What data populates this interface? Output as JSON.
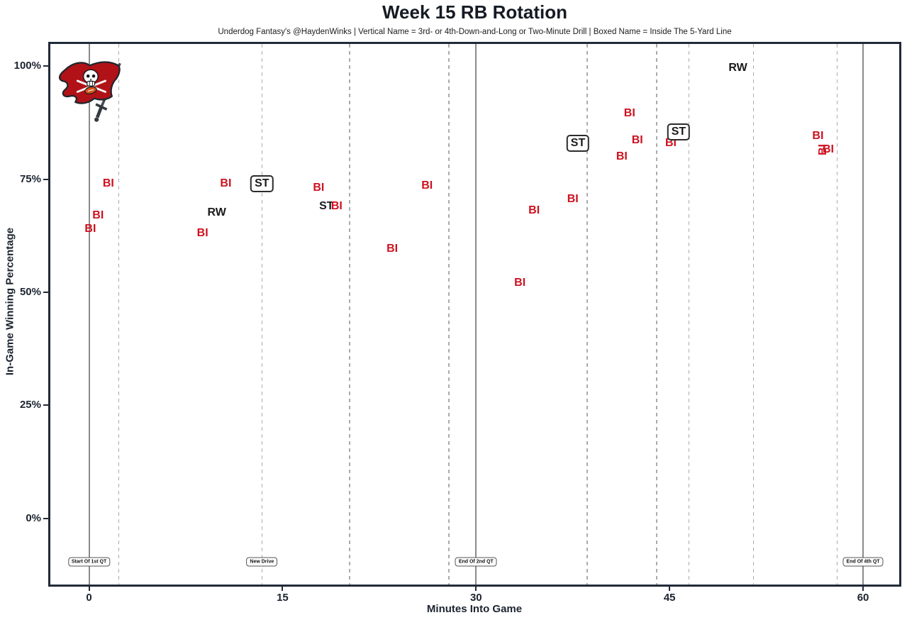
{
  "header": {
    "title": "Week 15 RB Rotation",
    "subtitle": "Underdog Fantasy's @HaydenWinks | Vertical Name = 3rd- or 4th-Down-and-Long or Two-Minute Drill | Boxed Name = Inside The 5-Yard Line"
  },
  "logo": {
    "name": "buccaneers-flag-logo"
  },
  "chart_data": {
    "type": "scatter",
    "title": "Week 15 RB Rotation",
    "xlabel": "Minutes Into Game",
    "ylabel": "In-Game Winning Percentage",
    "x_ticks": [
      0,
      15,
      30,
      45,
      60
    ],
    "y_ticks": [
      100,
      75,
      50,
      25,
      0
    ],
    "y_tick_suffix": "%",
    "xlim": [
      -3.0,
      62.8
    ],
    "ylim": [
      -14.6,
      104.9
    ],
    "grid": "vertical-only",
    "legend_position": "none",
    "colors": {
      "bi_red": "#CE1120",
      "label_dark": "#1a1a1a"
    },
    "quarter_lines_minutes": [
      0,
      30,
      60
    ],
    "drive_lines_minutes": [
      2.3,
      13.4,
      20.2,
      27.9,
      38.6,
      44.0,
      46.5,
      51.5,
      58.0
    ],
    "annotation_row_pct": -9.6,
    "annotations": [
      {
        "label": "Start Of 1st QT",
        "minute": 0
      },
      {
        "label": "New Drive",
        "minute": 13.4
      },
      {
        "label": "End Of 2nd QT",
        "minute": 30
      },
      {
        "label": "End Of 4th QT",
        "minute": 60
      }
    ],
    "points": [
      {
        "label": "BI",
        "minute": 0.1,
        "win_pct": 64,
        "style": "red",
        "boxed": false,
        "vertical": false
      },
      {
        "label": "BI",
        "minute": 0.7,
        "win_pct": 67,
        "style": "red",
        "boxed": false,
        "vertical": false
      },
      {
        "label": "BI",
        "minute": 1.5,
        "win_pct": 74,
        "style": "red",
        "boxed": false,
        "vertical": false
      },
      {
        "label": "BI",
        "minute": 8.8,
        "win_pct": 63,
        "style": "red",
        "boxed": false,
        "vertical": false
      },
      {
        "label": "RW",
        "minute": 9.9,
        "win_pct": 67.5,
        "style": "black",
        "boxed": false,
        "vertical": false
      },
      {
        "label": "BI",
        "minute": 10.6,
        "win_pct": 74,
        "style": "red",
        "boxed": false,
        "vertical": false
      },
      {
        "label": "ST",
        "minute": 13.4,
        "win_pct": 74,
        "style": "black",
        "boxed": true,
        "vertical": false
      },
      {
        "label": "BI",
        "minute": 17.8,
        "win_pct": 73,
        "style": "red",
        "boxed": false,
        "vertical": false
      },
      {
        "label": "ST",
        "minute": 18.4,
        "win_pct": 69,
        "style": "black",
        "boxed": false,
        "vertical": false
      },
      {
        "label": "BI",
        "minute": 19.2,
        "win_pct": 69,
        "style": "red",
        "boxed": false,
        "vertical": false
      },
      {
        "label": "BI",
        "minute": 23.5,
        "win_pct": 59.5,
        "style": "red",
        "boxed": false,
        "vertical": false
      },
      {
        "label": "BI",
        "minute": 26.2,
        "win_pct": 73.5,
        "style": "red",
        "boxed": false,
        "vertical": false
      },
      {
        "label": "BI",
        "minute": 33.4,
        "win_pct": 52,
        "style": "red",
        "boxed": false,
        "vertical": false
      },
      {
        "label": "BI",
        "minute": 34.5,
        "win_pct": 68,
        "style": "red",
        "boxed": false,
        "vertical": false
      },
      {
        "label": "BI",
        "minute": 37.5,
        "win_pct": 70.5,
        "style": "red",
        "boxed": false,
        "vertical": false
      },
      {
        "label": "ST",
        "minute": 37.9,
        "win_pct": 83,
        "style": "black",
        "boxed": true,
        "vertical": false
      },
      {
        "label": "BI",
        "minute": 41.3,
        "win_pct": 80,
        "style": "red",
        "boxed": false,
        "vertical": false
      },
      {
        "label": "BI",
        "minute": 41.9,
        "win_pct": 89.5,
        "style": "red",
        "boxed": false,
        "vertical": false
      },
      {
        "label": "BI",
        "minute": 42.5,
        "win_pct": 83.5,
        "style": "red",
        "boxed": false,
        "vertical": false
      },
      {
        "label": "BI",
        "minute": 45.1,
        "win_pct": 83,
        "style": "red",
        "boxed": false,
        "vertical": false
      },
      {
        "label": "ST",
        "minute": 45.7,
        "win_pct": 85.5,
        "style": "black",
        "boxed": true,
        "vertical": false
      },
      {
        "label": "RW",
        "minute": 50.3,
        "win_pct": 99.5,
        "style": "black",
        "boxed": false,
        "vertical": false
      },
      {
        "label": "BI",
        "minute": 56.5,
        "win_pct": 84.5,
        "style": "red",
        "boxed": false,
        "vertical": false
      },
      {
        "label": "BI",
        "minute": 56.9,
        "win_pct": 81.5,
        "style": "red",
        "boxed": false,
        "vertical": true
      },
      {
        "label": "BI",
        "minute": 57.3,
        "win_pct": 81.5,
        "style": "red",
        "boxed": false,
        "vertical": false
      }
    ]
  }
}
